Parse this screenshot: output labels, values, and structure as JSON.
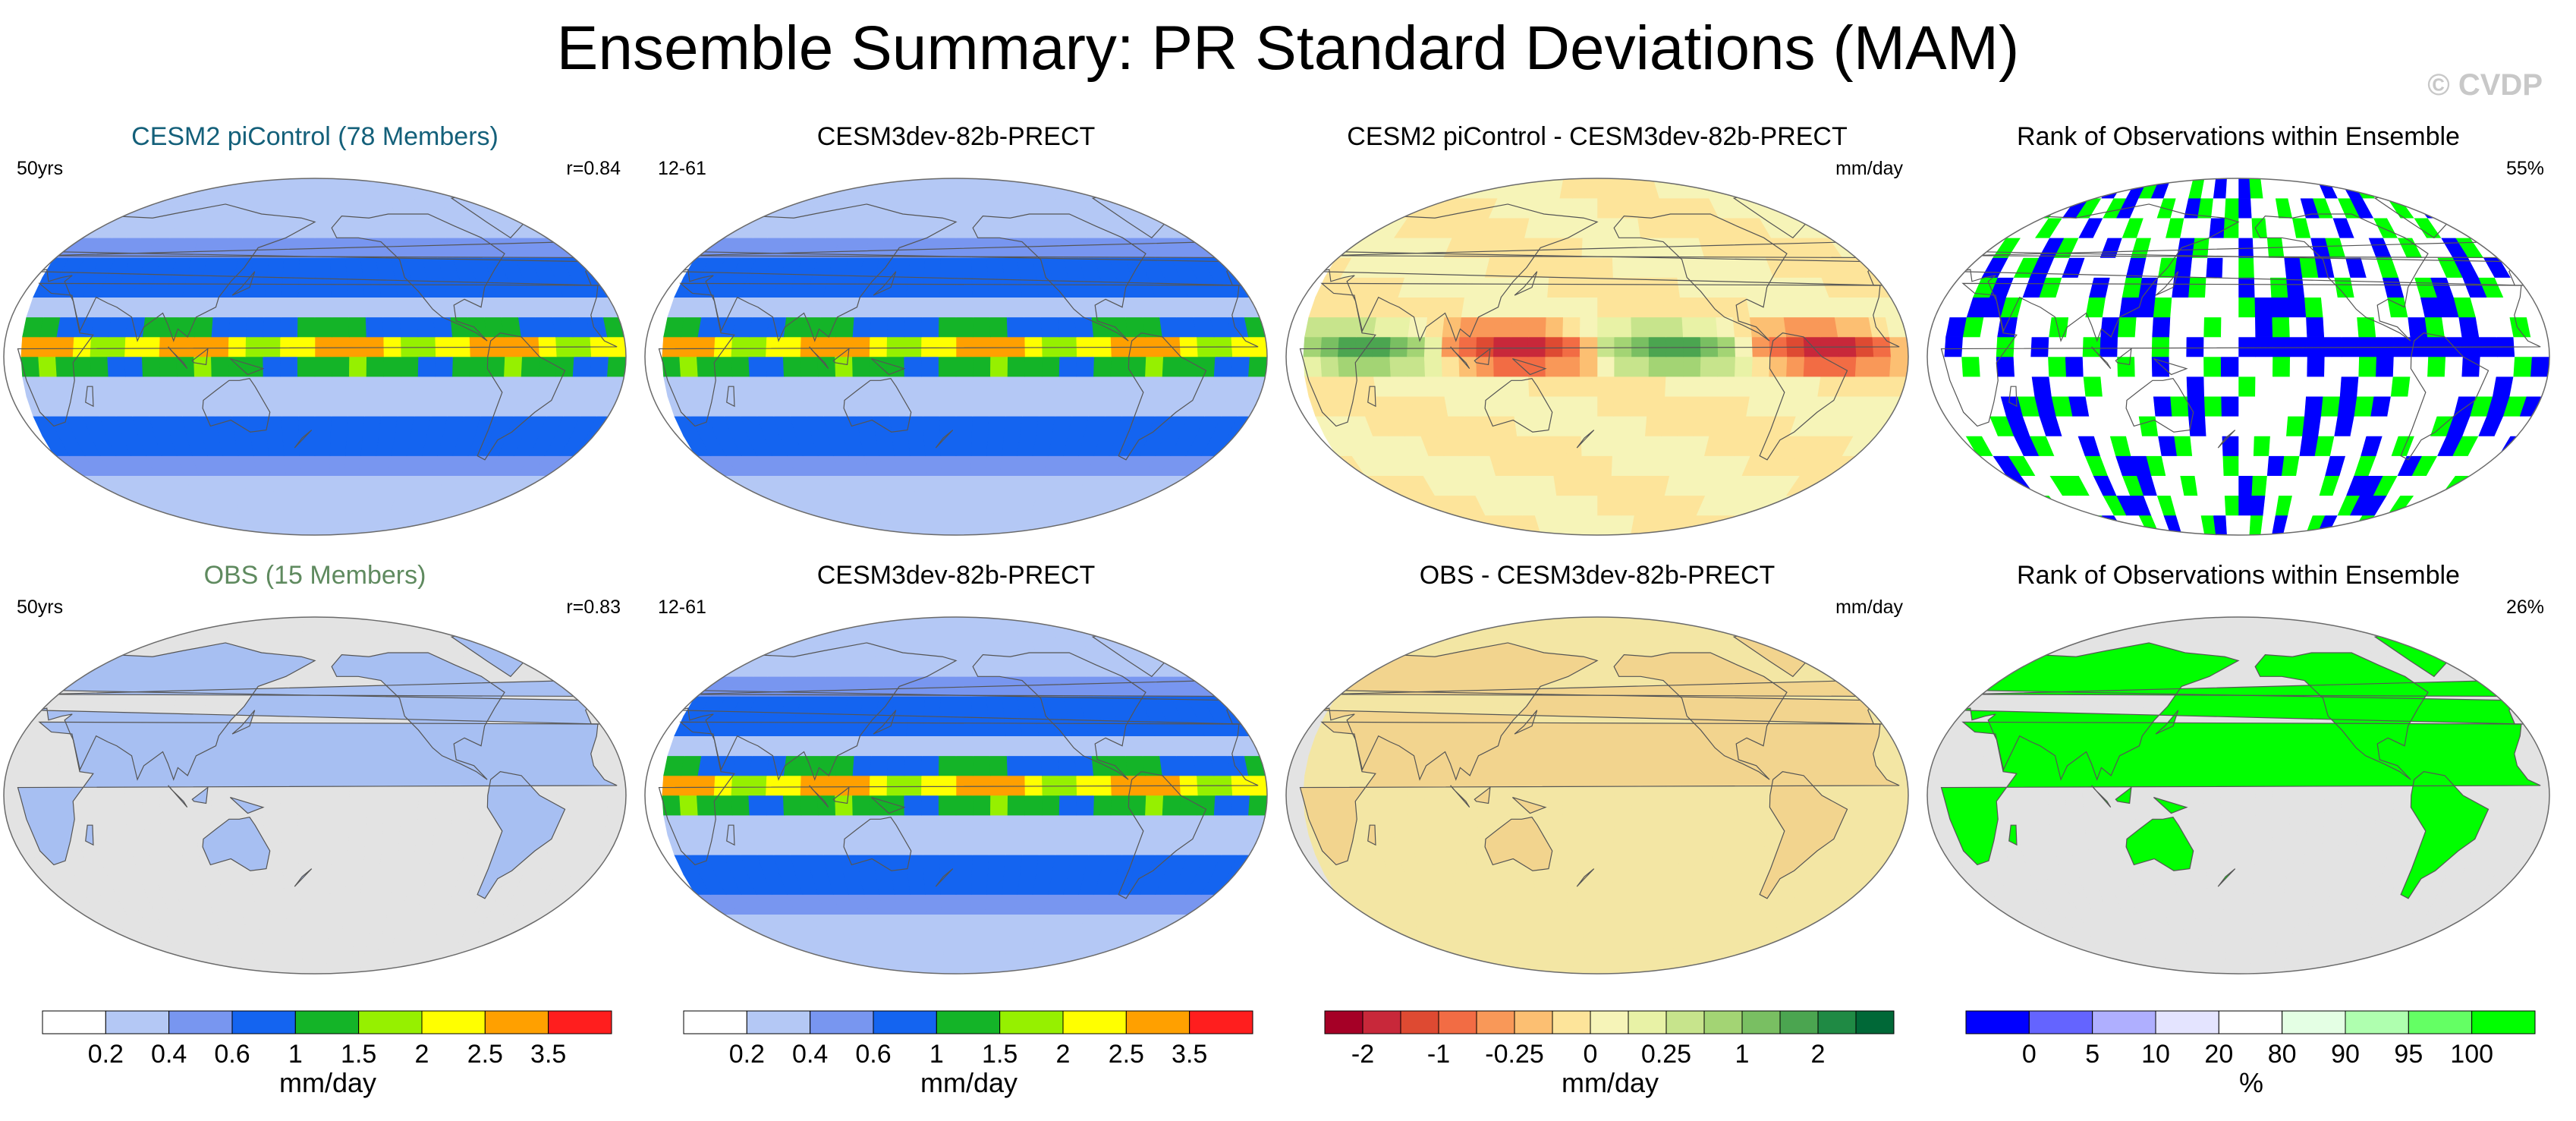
{
  "title": "Ensemble Summary: PR Standard Deviations (MAM)",
  "credit": "© CVDP",
  "panels": [
    {
      "title": "CESM2 piControl (78 Members)",
      "left": "50yrs",
      "right": "r=0.84",
      "style": "cesm",
      "kind": "std",
      "land": false
    },
    {
      "title": "CESM3dev-82b-PRECT",
      "left": "12-61",
      "right": "",
      "style": "plain",
      "kind": "std",
      "land": false
    },
    {
      "title": "CESM2 piControl - CESM3dev-82b-PRECT",
      "left": "",
      "right": "mm/day",
      "style": "plain",
      "kind": "diff",
      "land": false
    },
    {
      "title": "Rank of Observations within Ensemble",
      "left": "",
      "right": "55%",
      "style": "plain",
      "kind": "rank",
      "land": false
    },
    {
      "title": "OBS (15 Members)",
      "left": "50yrs",
      "right": "r=0.83",
      "style": "obs",
      "kind": "std",
      "land": true
    },
    {
      "title": "CESM3dev-82b-PRECT",
      "left": "12-61",
      "right": "",
      "style": "plain",
      "kind": "std",
      "land": false
    },
    {
      "title": "OBS - CESM3dev-82b-PRECT",
      "left": "",
      "right": "mm/day",
      "style": "plain",
      "kind": "diff",
      "land": true
    },
    {
      "title": "Rank of Observations within Ensemble",
      "left": "",
      "right": "26%",
      "style": "plain",
      "kind": "rank",
      "land": true
    }
  ],
  "colorbars": [
    {
      "unit": "mm/day",
      "colors": [
        "#ffffff",
        "#b4c8f5",
        "#7896f0",
        "#1464f0",
        "#14b428",
        "#96f000",
        "#ffff00",
        "#ffa000",
        "#ff1e1e"
      ],
      "labels": [
        "0.2",
        "0.4",
        "0.6",
        "1",
        "1.5",
        "2",
        "2.5",
        "3.5"
      ]
    },
    {
      "unit": "mm/day",
      "colors": [
        "#ffffff",
        "#b4c8f5",
        "#7896f0",
        "#1464f0",
        "#14b428",
        "#96f000",
        "#ffff00",
        "#ffa000",
        "#ff1e1e"
      ],
      "labels": [
        "0.2",
        "0.4",
        "0.6",
        "1",
        "1.5",
        "2",
        "2.5",
        "3.5"
      ]
    },
    {
      "unit": "mm/day",
      "colors": [
        "#a50026",
        "#c8283a",
        "#de4a32",
        "#f26c44",
        "#f99858",
        "#fcbf72",
        "#fde49a",
        "#f6f4b8",
        "#e8f2a6",
        "#c7e48c",
        "#a3d474",
        "#79bf62",
        "#4ba550",
        "#1f8a44",
        "#006837"
      ],
      "labels": [
        "-2",
        "-1",
        "-0.25",
        "0",
        "0.25",
        "1",
        "2"
      ],
      "label_at": [
        1,
        3,
        5,
        7,
        9,
        11,
        13
      ]
    },
    {
      "unit": "%",
      "colors": [
        "#0000ff",
        "#6464ff",
        "#afafff",
        "#e4e4ff",
        "#ffffff",
        "#e4ffe4",
        "#afffaf",
        "#64ff64",
        "#00ff00"
      ],
      "labels": [
        "0",
        "5",
        "10",
        "20",
        "80",
        "90",
        "95",
        "100"
      ]
    }
  ],
  "chart_data": {
    "type": "heatmap",
    "title": "Ensemble Summary: PR Standard Deviations (MAM)",
    "season": "MAM",
    "variable": "PR standard deviation",
    "std_levels_mm_day": [
      0.2,
      0.4,
      0.6,
      1,
      1.5,
      2,
      2.5,
      3.5
    ],
    "diff_levels_mm_day": [
      -2,
      -1,
      -0.25,
      0,
      0.25,
      1,
      2
    ],
    "rank_levels_percent": [
      0,
      5,
      10,
      20,
      80,
      90,
      95,
      100
    ],
    "pattern_correlations": {
      "CESM2 piControl": 0.84,
      "OBS": 0.83
    },
    "rank_summary_percent": {
      "CESM2 piControl": 55,
      "OBS": 26
    }
  }
}
